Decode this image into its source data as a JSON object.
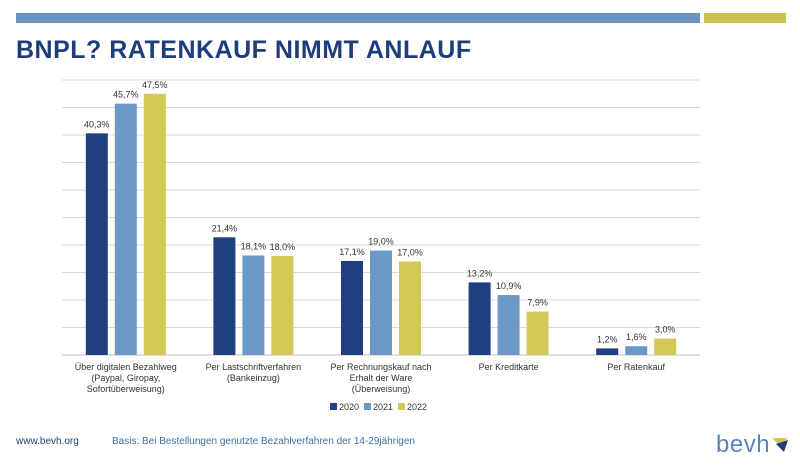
{
  "header": {
    "title": "BNPL? RATENKAUF NIMMT ANLAUF"
  },
  "footer": {
    "url": "www.bevh.org",
    "note": "Basis: Bei Bestellungen genutzte Bezahlverfahren der 14-29jährigen",
    "logo_text": "bevh"
  },
  "colors": {
    "top_bar_blue": "#6b93bf",
    "top_bar_yellow": "#c9c34d",
    "title": "#1f3d7a"
  },
  "chart_data": {
    "type": "bar",
    "categories": [
      [
        "Über digitalen Bezahlweg",
        "(Paypal, Giropay,",
        "Sofortüberweisung)"
      ],
      [
        "Per Lastschriftverfahren",
        "(Bankeinzug)"
      ],
      [
        "Per Rechnungskauf nach",
        "Erhalt der Ware",
        "(Überweisung)"
      ],
      [
        "Per Kreditkarte"
      ],
      [
        "Per Ratenkauf"
      ]
    ],
    "series": [
      {
        "name": "2020",
        "color": "#1f3f7f",
        "values": [
          40.3,
          21.4,
          17.1,
          13.2,
          1.2
        ],
        "labels": [
          "40,3%",
          "21,4%",
          "17,1%",
          "13,2%",
          "1,2%"
        ]
      },
      {
        "name": "2021",
        "color": "#6b98c5",
        "values": [
          45.7,
          18.1,
          19.0,
          10.9,
          1.6
        ],
        "labels": [
          "45,7%",
          "18,1%",
          "19,0%",
          "10,9%",
          "1,6%"
        ]
      },
      {
        "name": "2022",
        "color": "#d1c856",
        "values": [
          47.5,
          18.0,
          17.0,
          7.9,
          3.0
        ],
        "labels": [
          "47,5%",
          "18,0%",
          "17,0%",
          "7,9%",
          "3,0%"
        ]
      }
    ],
    "ylim": [
      0,
      50
    ],
    "grid": true,
    "legend_position": "bottom-center"
  }
}
